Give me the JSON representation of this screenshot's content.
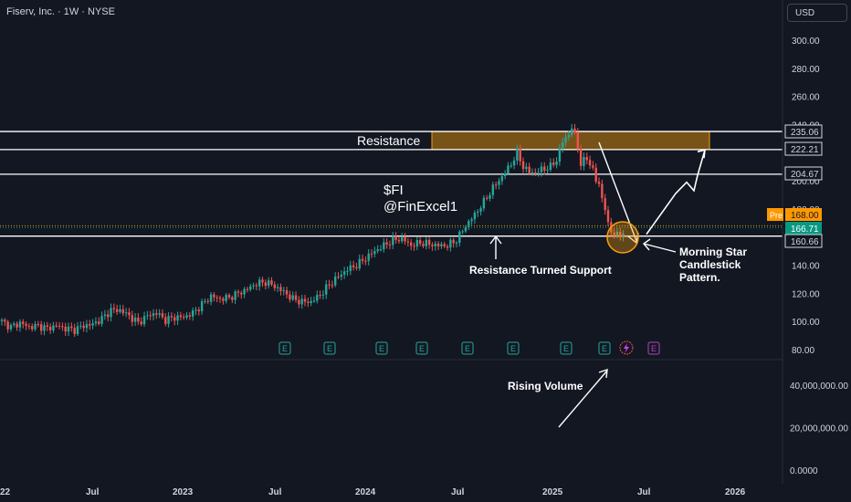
{
  "header": {
    "title": "Fiserv, Inc. · 1W · NYSE"
  },
  "currency_button": {
    "label": "USD"
  },
  "colors": {
    "background": "#131722",
    "up": "#26a69a",
    "down": "#ef5350",
    "zone": "#f59e0b",
    "pre_badge": "#ff9800",
    "current_badge": "#089981"
  },
  "price_axis": {
    "ticks": [
      "300.00",
      "280.00",
      "260.00",
      "240.00",
      "200.00",
      "180.00",
      "140.00",
      "120.00",
      "100.00",
      "80.00"
    ],
    "tick_values": [
      300,
      280,
      260,
      240,
      200,
      180,
      140,
      120,
      100,
      80
    ]
  },
  "volume_axis": {
    "ticks": [
      "40,000,000.00",
      "20,000,000.00",
      "0.0000"
    ],
    "tick_values": [
      40000000,
      20000000,
      0
    ]
  },
  "time_axis": {
    "labels": [
      "22",
      "Jul",
      "2023",
      "Jul",
      "2024",
      "Jul",
      "2025",
      "Jul",
      "2026"
    ]
  },
  "price_badges": {
    "pre_label": "Pre",
    "pre_value": "168.00",
    "current": "166.71",
    "levels": [
      "235.06",
      "222.21",
      "204.67",
      "160.66"
    ]
  },
  "annotations": {
    "resistance": "Resistance",
    "ticker": "$FI",
    "handle": "@FinExcel1",
    "support": "Resistance Turned Support",
    "pattern_line1": "Morning Star",
    "pattern_line2": "Candlestick",
    "pattern_line3": "Pattern.",
    "volume": "Rising Volume"
  },
  "events": {
    "earnings_label": "E",
    "earnings_count": 8,
    "dividend_icon": "lightning-icon",
    "future_earnings_label": "E"
  },
  "chart_data": {
    "type": "candlestick",
    "timeframe": "1W",
    "y_range": [
      74,
      312
    ],
    "levels": [
      235.06,
      222.21,
      204.67,
      160.66
    ],
    "resistance_zone": [
      222.21,
      235.06
    ],
    "current_price": 166.71,
    "pre_market_price": 168.0,
    "projection_path": [
      [
        0,
        162
      ],
      [
        8,
        191
      ],
      [
        11,
        199
      ],
      [
        13,
        193
      ],
      [
        14,
        204
      ],
      [
        16,
        222
      ]
    ],
    "anchors": [
      [
        0,
        100
      ],
      [
        3,
        96
      ],
      [
        6,
        99
      ],
      [
        9,
        96
      ],
      [
        12,
        97
      ],
      [
        15,
        95
      ],
      [
        18,
        97
      ],
      [
        21,
        95
      ],
      [
        24,
        94
      ],
      [
        27,
        97
      ],
      [
        30,
        98
      ],
      [
        33,
        102
      ],
      [
        36,
        108
      ],
      [
        39,
        108
      ],
      [
        42,
        104
      ],
      [
        45,
        99
      ],
      [
        48,
        104
      ],
      [
        51,
        106
      ],
      [
        54,
        101
      ],
      [
        57,
        103
      ],
      [
        60,
        103
      ],
      [
        63,
        106
      ],
      [
        66,
        112
      ],
      [
        69,
        118
      ],
      [
        72,
        116
      ],
      [
        75,
        117
      ],
      [
        78,
        120
      ],
      [
        81,
        123
      ],
      [
        84,
        127
      ],
      [
        87,
        128
      ],
      [
        90,
        125
      ],
      [
        93,
        121
      ],
      [
        96,
        116
      ],
      [
        99,
        114
      ],
      [
        102,
        114
      ],
      [
        105,
        119
      ],
      [
        108,
        126
      ],
      [
        111,
        132
      ],
      [
        114,
        137
      ],
      [
        117,
        140
      ],
      [
        120,
        145
      ],
      [
        123,
        150
      ],
      [
        126,
        154
      ],
      [
        129,
        158
      ],
      [
        132,
        159
      ],
      [
        135,
        154
      ],
      [
        138,
        156
      ],
      [
        141,
        155
      ],
      [
        144,
        154
      ],
      [
        147,
        154
      ],
      [
        150,
        158
      ],
      [
        153,
        168
      ],
      [
        156,
        176
      ],
      [
        159,
        185
      ],
      [
        162,
        195
      ],
      [
        165,
        203
      ],
      [
        168,
        212
      ],
      [
        170,
        220
      ],
      [
        172,
        210
      ],
      [
        174,
        206
      ],
      [
        176,
        206
      ],
      [
        178,
        208
      ],
      [
        181,
        210
      ],
      [
        183,
        215
      ],
      [
        185,
        228
      ],
      [
        187,
        233
      ],
      [
        188,
        238
      ],
      [
        189,
        232
      ],
      [
        190,
        224
      ],
      [
        191,
        212
      ],
      [
        193,
        216
      ],
      [
        195,
        208
      ],
      [
        196,
        200
      ],
      [
        197,
        197
      ],
      [
        199,
        180
      ],
      [
        200,
        168
      ],
      [
        202,
        162
      ],
      [
        203,
        161
      ],
      [
        204,
        161
      ],
      [
        205,
        163
      ]
    ]
  }
}
